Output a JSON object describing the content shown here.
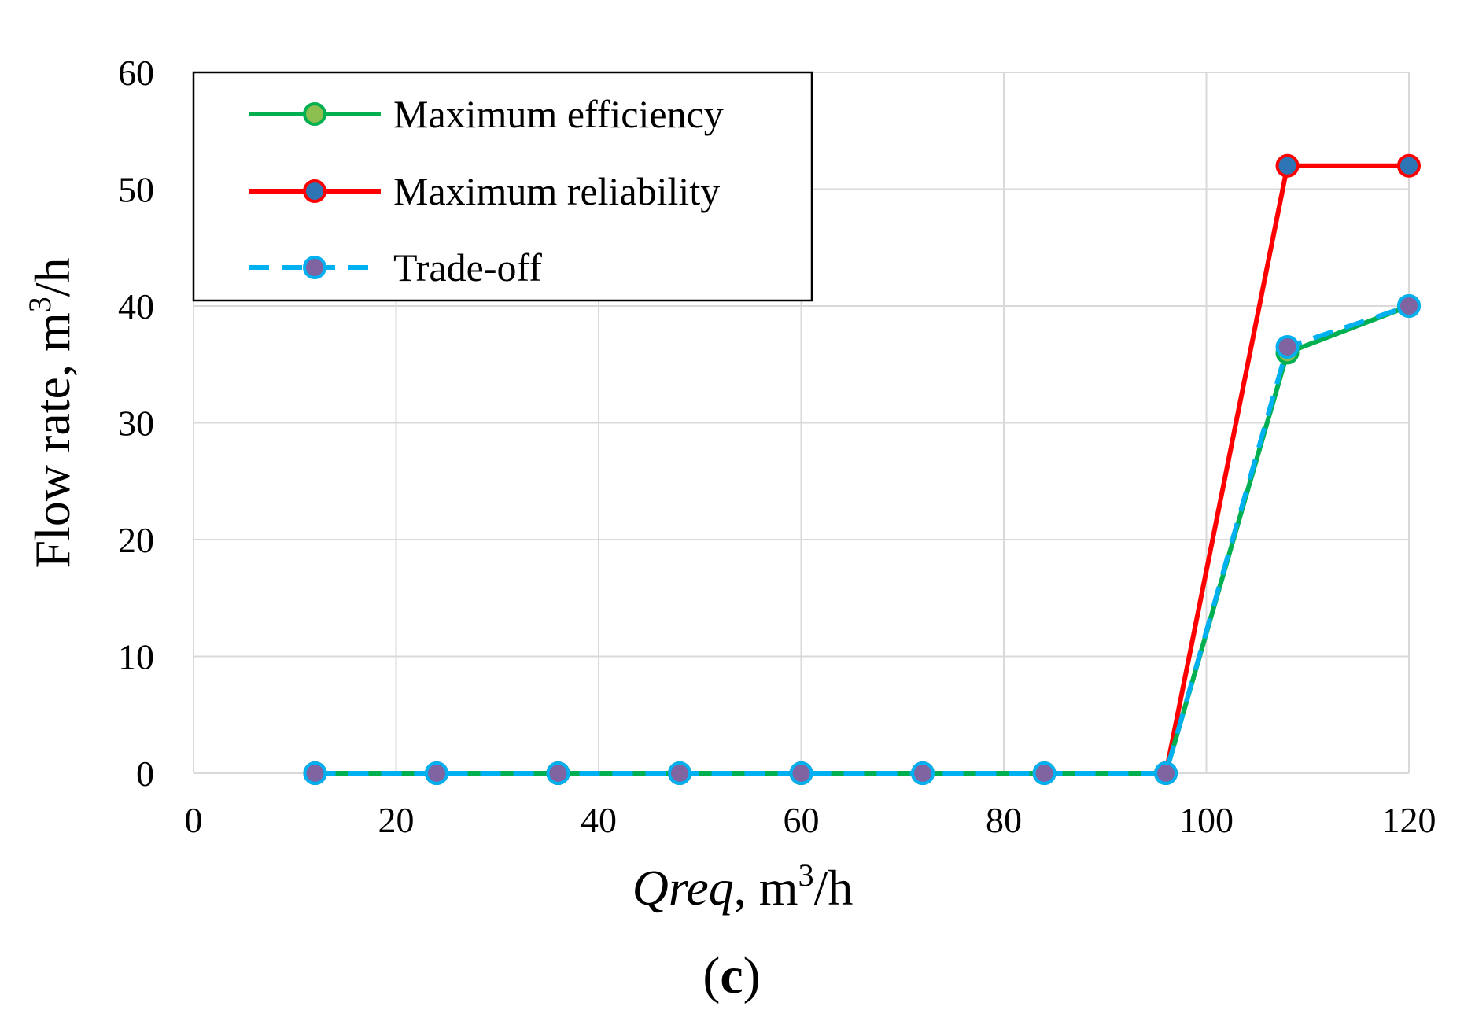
{
  "chart_data": {
    "type": "line",
    "title": "",
    "xlabel_italic": "Qreq",
    "xlabel_rest": ", m",
    "xlabel_sup": "3",
    "xlabel_tail": "/h",
    "ylabel_main": "Flow rate, m",
    "ylabel_sup": "3",
    "ylabel_tail": "/h",
    "panel_label_open": "(",
    "panel_label_letter": "c",
    "panel_label_close": ")",
    "xlim": [
      0,
      120
    ],
    "ylim": [
      0,
      60
    ],
    "xticks": [
      0,
      20,
      40,
      60,
      80,
      100,
      120
    ],
    "yticks": [
      0,
      10,
      20,
      30,
      40,
      50,
      60
    ],
    "grid": true,
    "legend_position": "top-left",
    "x": [
      12,
      24,
      36,
      48,
      60,
      72,
      84,
      96,
      108,
      120
    ],
    "series": [
      {
        "name": "Maximum efficiency",
        "values": [
          0,
          0,
          0,
          0,
          0,
          0,
          0,
          0,
          36,
          40
        ],
        "line_color": "#00b050",
        "marker_fill": "#8cbf4f",
        "marker_edge": "#00b050",
        "dashed": false
      },
      {
        "name": "Maximum reliability",
        "values": [
          0,
          0,
          0,
          0,
          0,
          0,
          0,
          0,
          52,
          52
        ],
        "line_color": "#ff0000",
        "marker_fill": "#2e75b6",
        "marker_edge": "#ff0000",
        "dashed": false
      },
      {
        "name": "Trade-off",
        "values": [
          0,
          0,
          0,
          0,
          0,
          0,
          0,
          0,
          36.5,
          40
        ],
        "line_color": "#00b0f0",
        "marker_fill": "#8064a2",
        "marker_edge": "#00b0f0",
        "dashed": true
      }
    ]
  }
}
